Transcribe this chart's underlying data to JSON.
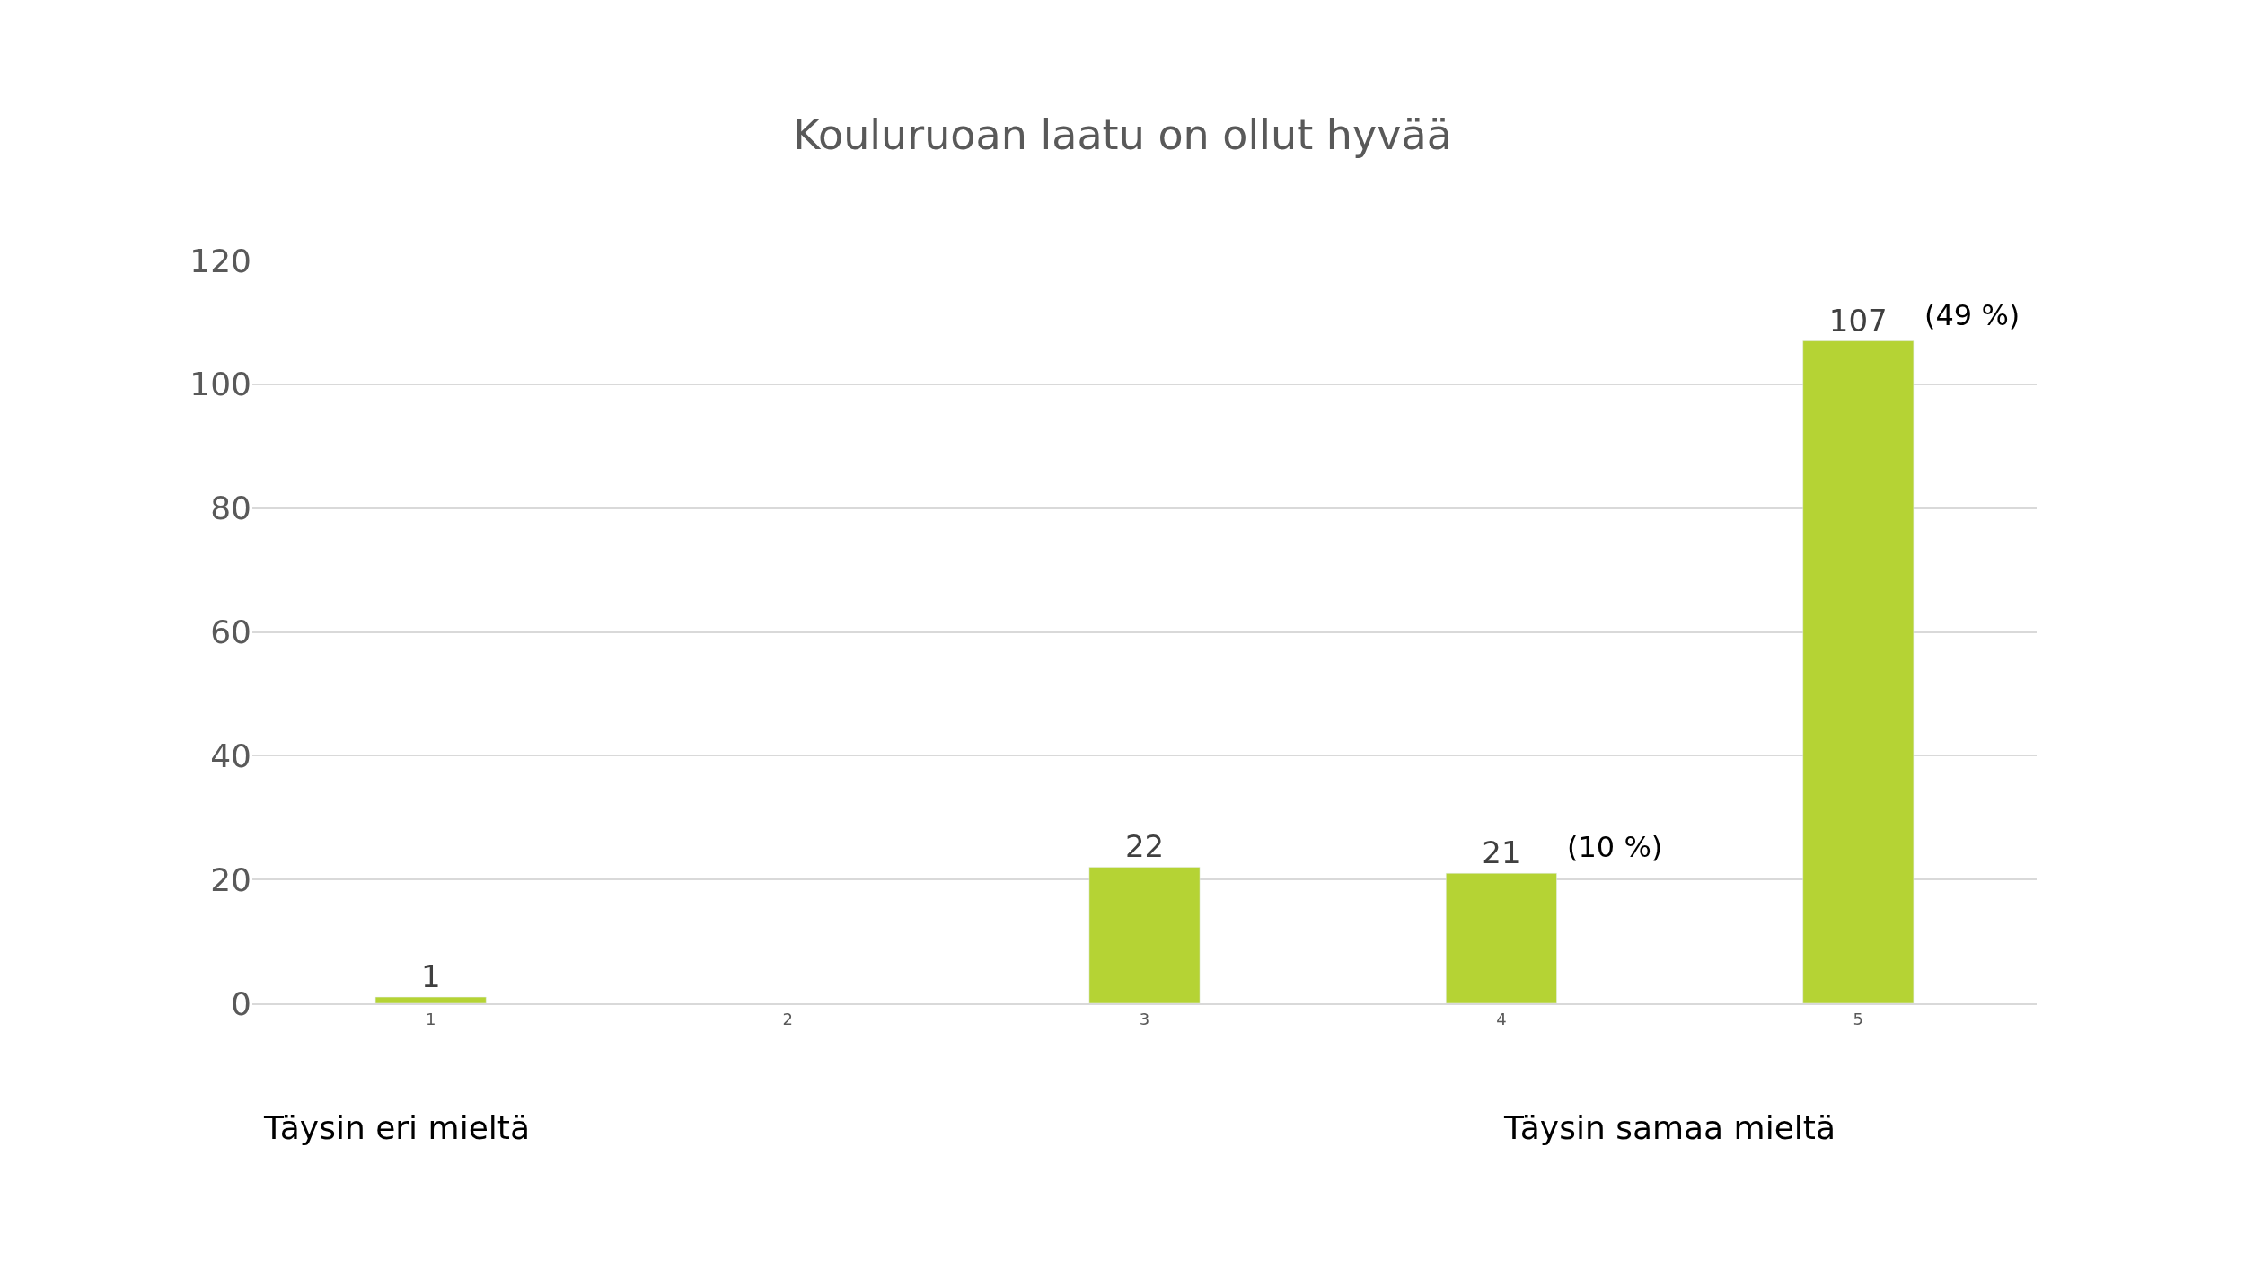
{
  "chart_data": {
    "type": "bar",
    "title": "Kouluruoan laatu on ollut hyvää",
    "categories": [
      "1",
      "2",
      "3",
      "4",
      "5"
    ],
    "values": [
      1,
      null,
      22,
      21,
      107
    ],
    "color": "#b5d334",
    "ylim": [
      0,
      120
    ],
    "yticks": [
      0,
      20,
      40,
      60,
      80,
      100,
      120
    ],
    "grid": "y",
    "data_labels": true,
    "legend": false,
    "annotations": [
      {
        "text": "(10 %)",
        "x": "4",
        "y": 21
      },
      {
        "text": "(49 %)",
        "x": "5",
        "y": 107
      },
      "Täysin eri mieltä",
      "Täysin samaa mieltä"
    ]
  }
}
